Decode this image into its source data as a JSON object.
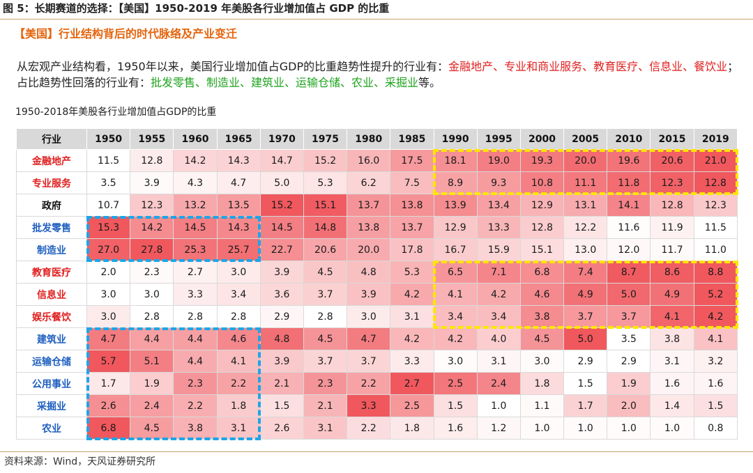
{
  "figure_title": "图 5：长期赛道的选择：【美国】1950-2019 年美股各行业增加值占 GDP 的比重",
  "section_title": "【美国】行业结构背后的时代脉络及产业变迁",
  "summary": {
    "prefix": "从宏观产业结构看，1950年以来，美国行业增加值占GDP的比重趋势性提升的行业有：",
    "rising": "金融地产、专业和商业服务、教育医疗、信息业、餐饮业",
    "middle": "；占比趋势性回落的行业有：",
    "falling": "批发零售、制造业、建筑业、运输仓储、农业、采掘业",
    "suffix": "等。"
  },
  "colors": {
    "rising_text": "#e02020",
    "falling_text": "#1ea31e",
    "rising_label": "#e02020",
    "falling_label": "#1f5fbf",
    "neutral_label": "#111111",
    "heat_low": "#ffffff",
    "heat_high": "#f0585e",
    "highlight_rising": "#ffe600",
    "highlight_falling": "#1ba6e8"
  },
  "source": "资料来源：Wind，天风证券研究所",
  "chart_data": {
    "type": "heatmap",
    "title": "1950-2018年美股各行业增加值占GDP的比重",
    "row_header": "行业",
    "columns": [
      "1950",
      "1955",
      "1960",
      "1965",
      "1970",
      "1975",
      "1980",
      "1985",
      "1990",
      "1995",
      "2000",
      "2005",
      "2010",
      "2015",
      "2019"
    ],
    "rows": [
      {
        "name": "金融地产",
        "group": "rising",
        "values": [
          11.5,
          12.8,
          14.2,
          14.3,
          14.7,
          15.2,
          16.0,
          17.5,
          18.1,
          19.0,
          19.3,
          20.0,
          19.6,
          20.6,
          21.0
        ]
      },
      {
        "name": "专业服务",
        "group": "rising",
        "values": [
          3.5,
          3.9,
          4.3,
          4.7,
          5.0,
          5.3,
          6.2,
          7.5,
          8.9,
          9.3,
          10.8,
          11.1,
          11.8,
          12.3,
          12.8
        ]
      },
      {
        "name": "政府",
        "group": "neutral",
        "values": [
          10.7,
          12.3,
          13.2,
          13.5,
          15.2,
          15.1,
          13.7,
          13.8,
          13.9,
          13.4,
          12.9,
          13.1,
          14.1,
          12.8,
          12.3
        ]
      },
      {
        "name": "批发零售",
        "group": "falling",
        "values": [
          15.3,
          14.2,
          14.5,
          14.3,
          14.5,
          14.8,
          13.8,
          13.7,
          12.9,
          13.3,
          12.8,
          12.2,
          11.6,
          11.9,
          11.5
        ]
      },
      {
        "name": "制造业",
        "group": "falling",
        "values": [
          27.0,
          27.8,
          25.3,
          25.7,
          22.7,
          20.6,
          20.0,
          17.8,
          16.7,
          15.9,
          15.1,
          13.0,
          12.0,
          11.7,
          11.0
        ]
      },
      {
        "name": "教育医疗",
        "group": "rising",
        "values": [
          2.0,
          2.3,
          2.7,
          3.0,
          3.9,
          4.5,
          4.8,
          5.3,
          6.5,
          7.1,
          6.8,
          7.4,
          8.7,
          8.6,
          8.8
        ]
      },
      {
        "name": "信息业",
        "group": "rising",
        "values": [
          3.0,
          3.0,
          3.3,
          3.4,
          3.6,
          3.7,
          3.9,
          4.2,
          4.1,
          4.2,
          4.6,
          4.9,
          5.0,
          4.9,
          5.2
        ]
      },
      {
        "name": "娱乐餐饮",
        "group": "rising",
        "values": [
          3.0,
          2.8,
          2.8,
          2.8,
          2.9,
          2.8,
          3.0,
          3.1,
          3.4,
          3.4,
          3.8,
          3.7,
          3.7,
          4.1,
          4.2
        ]
      },
      {
        "name": "建筑业",
        "group": "falling",
        "values": [
          4.7,
          4.4,
          4.4,
          4.6,
          4.8,
          4.5,
          4.7,
          4.2,
          4.2,
          4.0,
          4.5,
          5.0,
          3.5,
          3.8,
          4.1
        ]
      },
      {
        "name": "运输仓储",
        "group": "falling",
        "values": [
          5.7,
          5.1,
          4.4,
          4.1,
          3.9,
          3.7,
          3.7,
          3.3,
          3.0,
          3.1,
          3.0,
          2.9,
          2.9,
          3.1,
          3.2
        ]
      },
      {
        "name": "公用事业",
        "group": "falling",
        "values": [
          1.7,
          1.9,
          2.3,
          2.2,
          2.1,
          2.3,
          2.2,
          2.7,
          2.5,
          2.4,
          1.8,
          1.5,
          1.9,
          1.6,
          1.6
        ]
      },
      {
        "name": "采掘业",
        "group": "falling",
        "values": [
          2.6,
          2.4,
          2.2,
          1.8,
          1.5,
          2.1,
          3.3,
          2.5,
          1.5,
          1.0,
          1.1,
          1.7,
          2.0,
          1.4,
          1.5
        ]
      },
      {
        "name": "农业",
        "group": "falling",
        "values": [
          6.8,
          4.5,
          3.8,
          3.1,
          2.6,
          3.1,
          2.2,
          1.8,
          1.6,
          1.2,
          1.0,
          1.0,
          1.0,
          1.0,
          0.8
        ]
      }
    ],
    "highlight_boxes": [
      {
        "color": "yellow",
        "rows": [
          "金融地产",
          "专业服务"
        ],
        "columns": [
          "1990",
          "2019"
        ]
      },
      {
        "color": "yellow",
        "rows": [
          "教育医疗",
          "娱乐餐饮"
        ],
        "columns": [
          "1990",
          "2019"
        ]
      },
      {
        "color": "blue",
        "rows": [
          "批发零售",
          "制造业"
        ],
        "columns": [
          "1950",
          "1965"
        ]
      },
      {
        "color": "blue",
        "rows": [
          "建筑业",
          "农业"
        ],
        "columns": [
          "1950",
          "1965"
        ]
      }
    ]
  }
}
